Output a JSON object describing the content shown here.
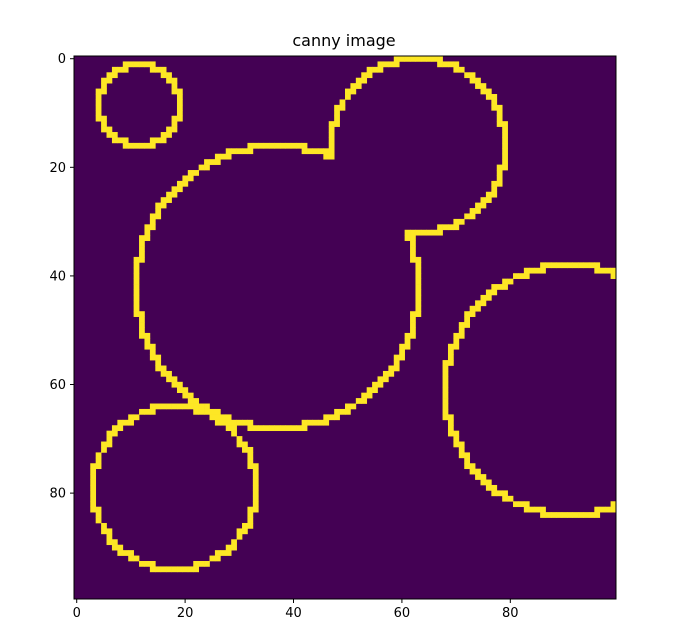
{
  "chart_data": {
    "type": "heatmap",
    "title": "canny  image",
    "xlabel": "",
    "ylabel": "",
    "image_size": [
      100,
      100
    ],
    "xlim": [
      -0.5,
      99.5
    ],
    "ylim": [
      99.5,
      -0.5
    ],
    "x_ticks": [
      0,
      20,
      40,
      60,
      80
    ],
    "y_ticks": [
      0,
      20,
      40,
      60,
      80
    ],
    "x_tick_labels": [
      "0",
      "20",
      "40",
      "60",
      "80"
    ],
    "y_tick_labels": [
      "0",
      "20",
      "40",
      "60",
      "80"
    ],
    "grid": false,
    "colormap": {
      "low": "#440154",
      "high": "#fde725"
    },
    "values_description": "binary edge map: 0 background, 1 edge",
    "edges_as_circle_outlines": [
      {
        "cx": 11.5,
        "cy": 8.5,
        "r": 7.5
      },
      {
        "cx": 63,
        "cy": 16,
        "r": 16
      },
      {
        "cx": 37,
        "cy": 42,
        "r": 26
      },
      {
        "cx": 91,
        "cy": 61,
        "r": 23
      },
      {
        "cx": 18,
        "cy": 79,
        "r": 15
      }
    ],
    "clip_overlaps": true
  }
}
